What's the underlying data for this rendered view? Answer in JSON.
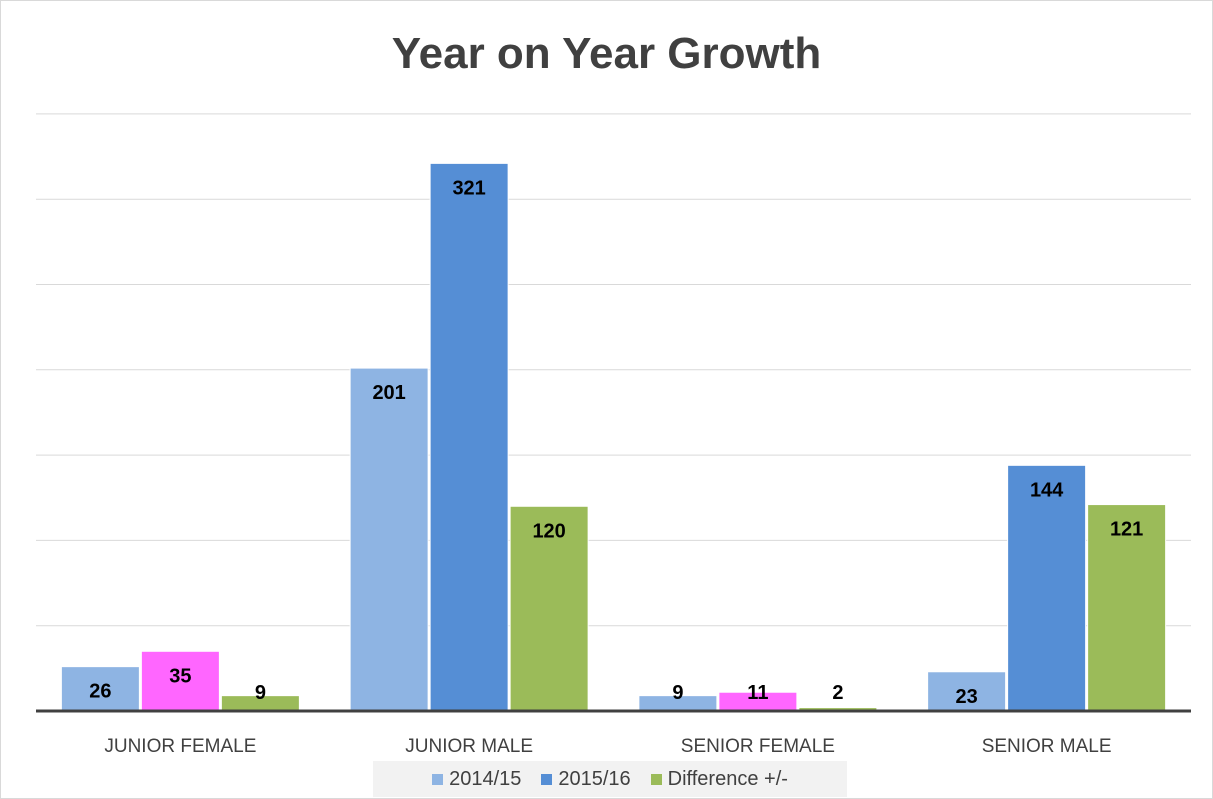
{
  "chart_data": {
    "type": "bar",
    "title": "Year on Year Growth",
    "categories": [
      "JUNIOR FEMALE",
      "JUNIOR MALE",
      "SENIOR FEMALE",
      "SENIOR MALE"
    ],
    "series": [
      {
        "name": "2014/15",
        "color": "#8eb4e3",
        "values": [
          26,
          201,
          9,
          23
        ]
      },
      {
        "name": "2015/16",
        "color": "#558ed5",
        "values": [
          35,
          321,
          11,
          144
        ]
      },
      {
        "name": "Difference +/-",
        "color": "#9bbb59",
        "values": [
          9,
          120,
          2,
          121
        ]
      }
    ],
    "highlight_color": "#ff66ff",
    "highlighted_points": [
      {
        "series": 1,
        "category": 0
      },
      {
        "series": 1,
        "category": 2
      }
    ],
    "ylim": [
      0,
      350
    ],
    "y_gridlines": [
      50,
      100,
      150,
      200,
      250,
      300,
      350
    ],
    "y_tick_labels_shown": false,
    "grid": true,
    "legend_position": "bottom"
  }
}
